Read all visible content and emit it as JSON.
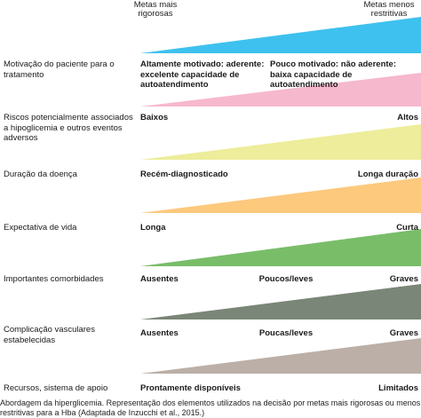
{
  "header": {
    "left_label": "Metas mais rigorosas",
    "right_label": "Metas menos restritivas"
  },
  "rows": [
    {
      "label": "Motivação do paciente para o tratamento",
      "left": "Altamente motivado: aderente: excelente capacidade de autoatendimento",
      "right": "Pouco motivado: não aderente: baixa capacidade de autoatendimento",
      "color": "#3ec1ee"
    },
    {
      "label": "Riscos potencialmente associados a hipoglicemia e outros eventos adversos",
      "left": "Baixos",
      "right": "Altos",
      "color": "#f6b8cc"
    },
    {
      "label": "Duração da doença",
      "left": "Recém-diagnosticado",
      "right": "Longa duração",
      "color": "#eded9b"
    },
    {
      "label": "Expectativa de vida",
      "left": "Longa",
      "right": "Curta",
      "color": "#fcc97d"
    },
    {
      "label": "Importantes comorbidades",
      "left": "Ausentes",
      "middle": "Poucos/leves",
      "right": "Graves",
      "color": "#79bd69"
    },
    {
      "label": "Complicação vasculares estabelecidas",
      "left": "Ausentes",
      "middle": "Poucas/leves",
      "right": "Graves",
      "color": "#7a8677"
    },
    {
      "label": "Recursos, sistema de apoio",
      "left": "Prontamente disponíveis",
      "right": "Limitados",
      "color": "#bbafa7"
    }
  ],
  "caption": "Abordagem da hiperglicemia. Representação dos elementos utilizados na decisão por metas mais rigorosas ou menos restritivas para a Hba (Adaptada de Inzucchi et al., 2015.)"
}
